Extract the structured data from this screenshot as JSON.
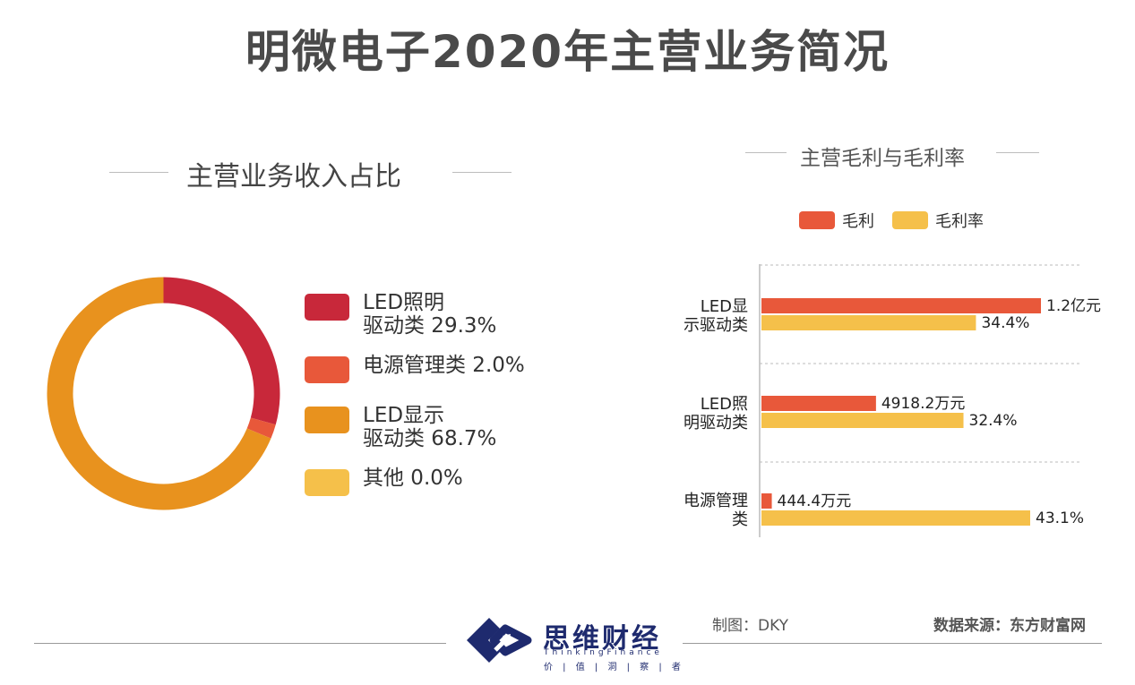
{
  "title": "明微电子2020年主营业务简况",
  "colors": {
    "led_lighting": "#c8283a",
    "power_mgmt": "#e8583a",
    "led_display": "#e8921e",
    "other": "#f5c04a",
    "gross_profit": "#e8583a",
    "gross_margin": "#f5c04a"
  },
  "chart_data": [
    {
      "type": "pie",
      "title": "主营业务收入占比",
      "donut": true,
      "slices": [
        {
          "name": "LED照明驱动类",
          "name_lines": [
            "LED照明",
            "驱动类 29.3%"
          ],
          "value": 29.3,
          "label": "LED照明驱动类 29.3%"
        },
        {
          "name": "电源管理类",
          "name_lines": [
            "电源管理类 2.0%"
          ],
          "value": 2.0,
          "label": "电源管理类 2.0%"
        },
        {
          "name": "LED显示驱动类",
          "name_lines": [
            "LED显示",
            "驱动类 68.7%"
          ],
          "value": 68.7,
          "label": "LED显示驱动类 68.7%"
        },
        {
          "name": "其他",
          "name_lines": [
            "其他 0.0%"
          ],
          "value": 0.0,
          "label": "其他 0.0%"
        }
      ]
    },
    {
      "type": "bar",
      "orientation": "horizontal",
      "title": "主营毛利与毛利率",
      "legend": [
        "毛利",
        "毛利率"
      ],
      "categories": [
        {
          "name": "LED显示驱动类",
          "lines": [
            "LED显",
            "示驱动类"
          ]
        },
        {
          "name": "LED照明驱动类",
          "lines": [
            "LED照",
            "明驱动类"
          ]
        },
        {
          "name": "电源管理类",
          "lines": [
            "电源管理",
            "类"
          ]
        }
      ],
      "series": [
        {
          "name": "毛利",
          "unit": "万元",
          "values": [
            12000,
            4918.2,
            444.4
          ],
          "labels": [
            "1.2亿元",
            "4918.2万元",
            "444.4万元"
          ]
        },
        {
          "name": "毛利率",
          "unit": "%",
          "values": [
            34.4,
            32.4,
            43.1
          ],
          "labels": [
            "34.4%",
            "32.4%",
            "43.1%"
          ]
        }
      ]
    }
  ],
  "footer": {
    "brand_name": "思维财经",
    "brand_en": "ThinkingFinance",
    "brand_slogan": "价 | 值 | 洞 | 察 | 者",
    "made_by": "制图：DKY",
    "source": "数据来源：东方财富网"
  }
}
